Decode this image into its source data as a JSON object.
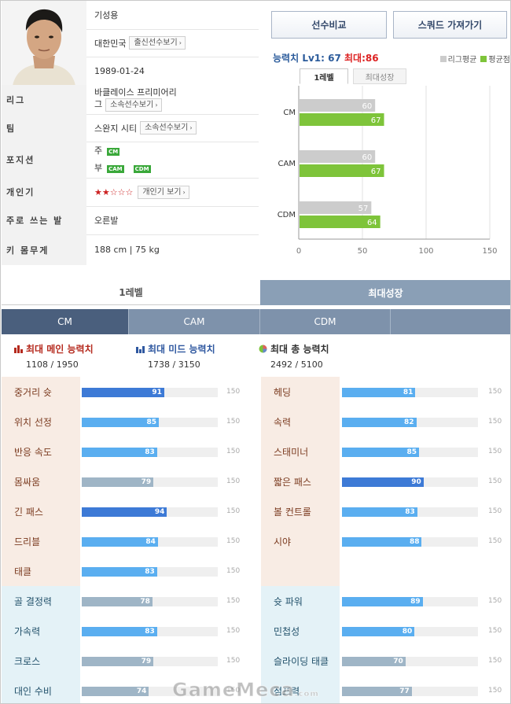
{
  "profile": {
    "name": "기성용",
    "nationality": "대한민국",
    "nation_btn": "출신선수보기",
    "birthdate": "1989-01-24",
    "rows": {
      "league": {
        "label": "리그",
        "value_line1": "바클레이스 프리미어리",
        "value_line2": "그",
        "button": "소속선수보기"
      },
      "team": {
        "label": "팀",
        "value": "스완지 시티",
        "button": "소속선수보기"
      },
      "position": {
        "label": "포지션",
        "main_label": "주",
        "main_tags": [
          "CM"
        ],
        "sub_label": "부",
        "sub_tags": [
          "CAM",
          "CDM"
        ]
      },
      "popularity": {
        "label": "개인기",
        "stars_on": "★★",
        "stars_off": "☆☆☆",
        "button": "개인기 보기"
      },
      "foot": {
        "label": "주로 쓰는 발",
        "value": "오른발"
      },
      "body": {
        "label": "키 몸무게",
        "value": "188 cm | 75 kg"
      }
    }
  },
  "actions": {
    "compare": "선수비교",
    "squad": "스쿼드 가져가기"
  },
  "ability": {
    "label": "능력치",
    "lv1": "Lv1: 67",
    "max": "최대:86"
  },
  "legend": {
    "league_avg": "리그평균",
    "avg": "평균점",
    "grey": "#cccccc",
    "green": "#7ec43a"
  },
  "chart_tabs": {
    "level1": "1레벨",
    "max_growth": "최대성장"
  },
  "chart_data": {
    "type": "bar",
    "orientation": "horizontal",
    "categories": [
      "CM",
      "CAM",
      "CDM"
    ],
    "series": [
      {
        "name": "리그평균",
        "color": "#cccccc",
        "values": [
          60,
          60,
          57
        ]
      },
      {
        "name": "평균점",
        "color": "#7ec43a",
        "values": [
          67,
          67,
          64
        ]
      }
    ],
    "xlim": [
      0,
      150
    ],
    "xticks": [
      "0",
      "50",
      "100",
      "150"
    ]
  },
  "level_tabs": {
    "level1": "1레벨",
    "max": "최대성장"
  },
  "position_tabs": [
    "CM",
    "CAM",
    "CDM",
    ""
  ],
  "summaries": [
    {
      "title": "최대 메인 능력치",
      "value": "1108 / 1950",
      "color": "#b52a1e"
    },
    {
      "title": "최대 미드 능력치",
      "value": "1738 / 3150",
      "color": "#2f58a0"
    },
    {
      "title": "최대 총 능력치",
      "value": "2492 / 5100",
      "color": "#333333"
    }
  ],
  "stats_max": "150",
  "stats_left": [
    {
      "name": "중거리 슛",
      "value": 91,
      "color": "#3d7ad6"
    },
    {
      "name": "위치 선정",
      "value": 85,
      "color": "#5aaef0"
    },
    {
      "name": "반응 속도",
      "value": 83,
      "color": "#5aaef0"
    },
    {
      "name": "몸싸움",
      "value": 79,
      "color": "#9fb5c6"
    },
    {
      "name": "긴 패스",
      "value": 94,
      "color": "#3d7ad6"
    },
    {
      "name": "드리블",
      "value": 84,
      "color": "#5aaef0"
    },
    {
      "name": "태클",
      "value": 83,
      "color": "#5aaef0"
    },
    {
      "name": "골 결정력",
      "value": 78,
      "color": "#9fb5c6"
    },
    {
      "name": "가속력",
      "value": 83,
      "color": "#5aaef0"
    },
    {
      "name": "크로스",
      "value": 79,
      "color": "#9fb5c6"
    },
    {
      "name": "대인 수비",
      "value": 74,
      "color": "#9fb5c6"
    }
  ],
  "stats_right": [
    {
      "name": "헤딩",
      "value": 81,
      "color": "#5aaef0"
    },
    {
      "name": "속력",
      "value": 82,
      "color": "#5aaef0"
    },
    {
      "name": "스태미너",
      "value": 85,
      "color": "#5aaef0"
    },
    {
      "name": "짧은 패스",
      "value": 90,
      "color": "#3d7ad6"
    },
    {
      "name": "볼 컨트롤",
      "value": 83,
      "color": "#5aaef0"
    },
    {
      "name": "시야",
      "value": 88,
      "color": "#5aaef0"
    },
    {
      "name": "",
      "value": null,
      "color": ""
    },
    {
      "name": "슛 파워",
      "value": 89,
      "color": "#5aaef0"
    },
    {
      "name": "민첩성",
      "value": 80,
      "color": "#5aaef0"
    },
    {
      "name": "슬라이딩 태클",
      "value": 70,
      "color": "#9fb5c6"
    },
    {
      "name": "점프력",
      "value": 77,
      "color": "#9fb5c6"
    }
  ],
  "watermark": {
    "main": "GameMeca",
    "suffix": ".com"
  }
}
